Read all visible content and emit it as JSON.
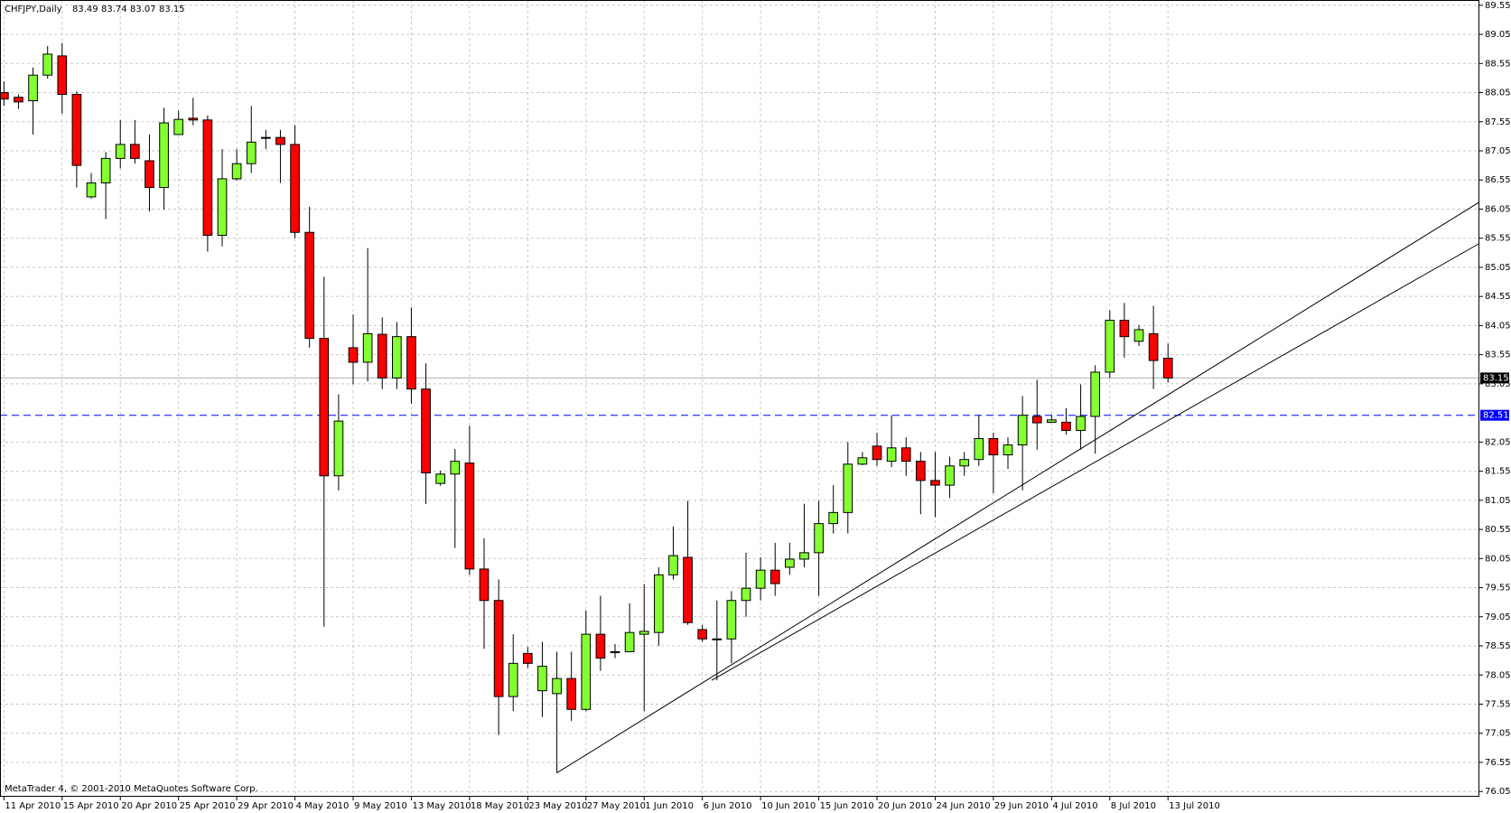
{
  "chart_data": {
    "type": "candlestick",
    "title": "CHFJPY,Daily",
    "title_values": [
      83.49,
      83.74,
      83.07,
      83.15
    ],
    "annotation": "MetaTrader 4, © 2001-2010 MetaQuotes Software Corp.",
    "categories": [
      "11 Apr 2010",
      null,
      null,
      null,
      "15 Apr 2010",
      null,
      null,
      null,
      "20 Apr 2010",
      null,
      null,
      null,
      "25 Apr 2010",
      null,
      null,
      null,
      "29 Apr 2010",
      null,
      null,
      null,
      "4 May 2010",
      null,
      null,
      null,
      "9 May 2010",
      null,
      null,
      null,
      "13 May 2010",
      null,
      null,
      null,
      "18 May 2010",
      null,
      null,
      null,
      "23 May 2010",
      null,
      null,
      null,
      "27 May 2010",
      null,
      null,
      null,
      "1 Jun 2010",
      null,
      null,
      null,
      "6 Jun 2010",
      null,
      null,
      null,
      "10 Jun 2010",
      null,
      null,
      null,
      "15 Jun 2010",
      null,
      null,
      null,
      "20 Jun 2010",
      null,
      null,
      null,
      "24 Jun 2010",
      null,
      null,
      null,
      "29 Jun 2010",
      null,
      null,
      null,
      "4 Jul 2010",
      null,
      null,
      null,
      "8 Jul 2010",
      null,
      null,
      null,
      "13 Jul 2010"
    ],
    "open": [
      88.05,
      87.97,
      87.91,
      88.35,
      88.68,
      88.02,
      86.26,
      86.5,
      86.92,
      87.16,
      86.88,
      86.42,
      87.33,
      87.61,
      87.58,
      85.6,
      86.57,
      86.83,
      87.28,
      87.28,
      87.16,
      85.65,
      83.83,
      81.47,
      83.67,
      83.42,
      83.9,
      83.15,
      83.86,
      82.96,
      81.34,
      81.5,
      81.69,
      79.87,
      79.33,
      77.68,
      78.42,
      77.78,
      77.73,
      77.99,
      77.46,
      78.75,
      78.45,
      78.45,
      78.75,
      78.78,
      79.77,
      80.07,
      78.83,
      78.67,
      78.67,
      79.33,
      79.54,
      79.85,
      79.9,
      80.04,
      80.15,
      80.65,
      80.84,
      81.67,
      81.98,
      81.72,
      81.95,
      81.72,
      81.39,
      81.31,
      81.64,
      81.75,
      82.11,
      81.83,
      82.0,
      82.49,
      82.39,
      82.39,
      82.25,
      82.49,
      83.25,
      84.14,
      83.78,
      83.91,
      83.49
    ],
    "high": [
      88.24,
      88.02,
      88.48,
      88.85,
      88.9,
      88.07,
      86.67,
      87.03,
      87.58,
      87.58,
      87.33,
      87.79,
      87.74,
      87.96,
      87.66,
      87.08,
      87.08,
      87.82,
      87.41,
      87.41,
      87.49,
      86.09,
      84.89,
      82.87,
      84.24,
      85.38,
      84.19,
      84.11,
      84.36,
      83.4,
      81.56,
      81.93,
      82.33,
      80.4,
      79.69,
      78.75,
      78.53,
      78.62,
      78.45,
      78.45,
      79.16,
      79.41,
      78.58,
      79.28,
      79.61,
      79.9,
      80.6,
      81.04,
      78.91,
      79.33,
      79.49,
      80.15,
      80.07,
      80.32,
      80.32,
      80.99,
      81.04,
      81.31,
      82.05,
      81.88,
      82.21,
      82.51,
      82.13,
      81.88,
      81.88,
      81.8,
      81.88,
      82.51,
      82.21,
      82.13,
      82.84,
      83.12,
      82.51,
      82.63,
      83.04,
      83.37,
      84.31,
      84.44,
      84.06,
      84.39,
      83.74
    ],
    "low": [
      87.82,
      87.77,
      87.33,
      88.29,
      87.69,
      86.42,
      86.23,
      85.88,
      86.75,
      86.83,
      86.01,
      86.04,
      87.33,
      87.49,
      85.32,
      85.41,
      86.54,
      86.67,
      87.08,
      86.5,
      85.55,
      83.67,
      78.88,
      81.22,
      83.04,
      83.09,
      82.96,
      82.96,
      82.71,
      80.99,
      81.3,
      80.23,
      79.77,
      78.5,
      77.02,
      77.43,
      78.17,
      77.33,
      76.37,
      77.26,
      77.43,
      78.12,
      78.34,
      78.45,
      77.43,
      78.55,
      79.69,
      78.91,
      78.62,
      77.96,
      78.25,
      79.05,
      79.33,
      79.41,
      79.77,
      79.9,
      79.41,
      80.48,
      80.48,
      81.65,
      81.64,
      81.62,
      81.47,
      80.81,
      80.76,
      81.09,
      81.47,
      81.64,
      81.17,
      81.59,
      81.22,
      81.92,
      82.38,
      82.18,
      81.92,
      81.85,
      83.15,
      83.5,
      83.7,
      82.96,
      83.07
    ],
    "close": [
      87.94,
      87.89,
      88.35,
      88.71,
      88.02,
      86.8,
      86.5,
      86.92,
      87.16,
      86.92,
      86.42,
      87.53,
      87.59,
      87.58,
      85.6,
      86.57,
      86.83,
      87.2,
      87.28,
      87.16,
      85.65,
      83.83,
      81.47,
      82.41,
      83.42,
      83.91,
      83.15,
      83.86,
      82.96,
      81.52,
      81.5,
      81.72,
      79.87,
      79.33,
      77.68,
      78.25,
      78.25,
      78.2,
      77.99,
      77.46,
      78.75,
      78.34,
      78.45,
      78.78,
      78.8,
      79.77,
      80.1,
      78.95,
      78.67,
      78.67,
      79.33,
      79.54,
      79.85,
      79.62,
      80.04,
      80.15,
      80.65,
      80.84,
      81.67,
      81.78,
      81.75,
      81.95,
      81.72,
      81.39,
      81.31,
      81.64,
      81.75,
      82.11,
      81.83,
      82.0,
      82.51,
      82.38,
      82.43,
      82.25,
      82.49,
      83.25,
      84.14,
      83.86,
      83.98,
      83.45,
      83.15
    ],
    "up_color": "#84ff32",
    "down_color": "#ff0000",
    "xlim": [
      -0.27,
      101.4
    ],
    "ylim": [
      75.96,
      89.64
    ],
    "yticks": [
      89.55,
      89.05,
      88.55,
      88.05,
      87.55,
      87.05,
      86.55,
      86.05,
      85.55,
      85.05,
      84.55,
      84.05,
      83.55,
      83.05,
      82.05,
      81.55,
      81.05,
      80.55,
      80.05,
      79.55,
      79.05,
      78.55,
      78.05,
      77.55,
      77.05,
      76.55,
      76.05
    ],
    "grid": true,
    "levels": [
      {
        "value": 82.51,
        "color": "#0000ff",
        "label_bg": "#0000ff"
      },
      {
        "value": 83.15,
        "color": "#b0b0b0",
        "label_bg": "#000000"
      }
    ],
    "trendlines": [
      {
        "x": [
          38,
          101.4
        ],
        "y": [
          76.37,
          86.17
        ]
      },
      {
        "x": [
          48.64,
          101.4
        ],
        "y": [
          77.96,
          85.46
        ]
      }
    ]
  }
}
